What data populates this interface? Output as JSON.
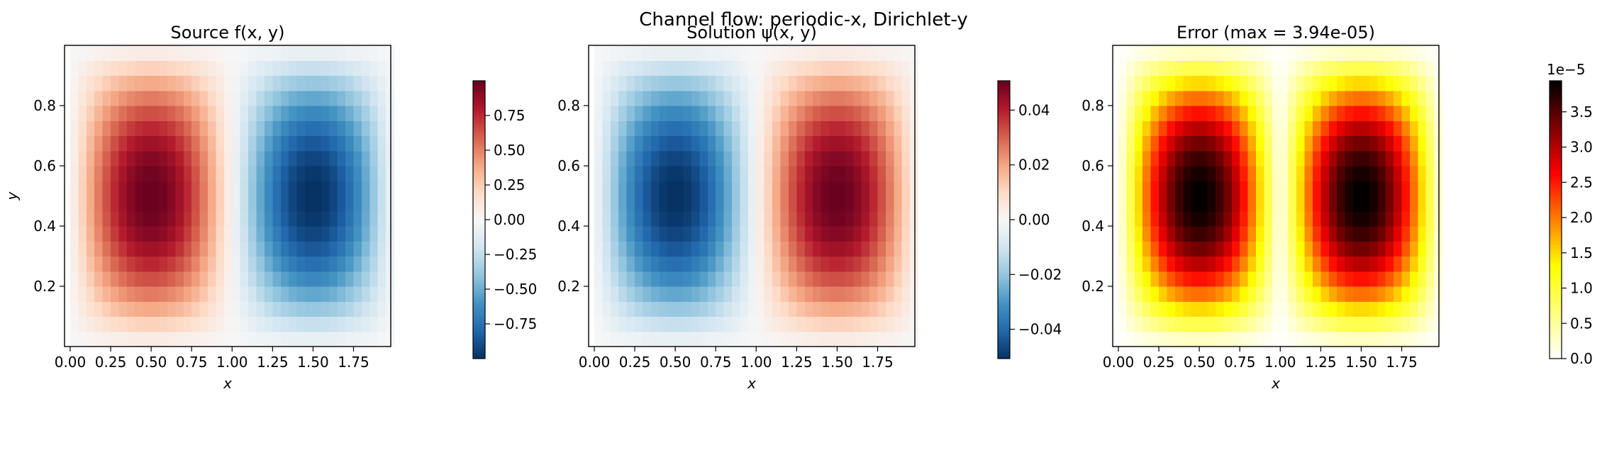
{
  "figure": {
    "suptitle": "Channel flow: periodic-x, Dirichlet-y"
  },
  "chart_data": [
    {
      "type": "heatmap",
      "title": "Source f(x, y)",
      "xlabel": "x",
      "ylabel": "y",
      "field": "sin(pi*x)*sin(pi*y)",
      "xlim": [
        0,
        2
      ],
      "ylim": [
        0,
        1
      ],
      "grid": [
        40,
        20
      ],
      "colormap": "RdBu_r",
      "vmin": -1,
      "vmax": 1,
      "xticks": [
        0.0,
        0.25,
        0.5,
        0.75,
        1.0,
        1.25,
        1.5,
        1.75
      ],
      "xtick_labels": [
        "0.00",
        "0.25",
        "0.50",
        "0.75",
        "1.00",
        "1.25",
        "1.50",
        "1.75"
      ],
      "yticks": [
        0.2,
        0.4,
        0.6,
        0.8
      ],
      "ytick_labels": [
        "0.2",
        "0.4",
        "0.6",
        "0.8"
      ],
      "colorbar_ticks": [
        -0.75,
        -0.5,
        -0.25,
        0.0,
        0.25,
        0.5,
        0.75
      ],
      "colorbar_labels": [
        "−0.75",
        "−0.50",
        "−0.25",
        "0.00",
        "0.25",
        "0.50",
        "0.75"
      ],
      "colorbar_offset": ""
    },
    {
      "type": "heatmap",
      "title": "Solution ψ(x, y)",
      "xlabel": "x",
      "ylabel": "",
      "field": "-0.0507*sin(pi*x)*sin(pi*y)",
      "xlim": [
        0,
        2
      ],
      "ylim": [
        0,
        1
      ],
      "grid": [
        40,
        20
      ],
      "colormap": "RdBu_r",
      "vmin": -0.0507,
      "vmax": 0.0507,
      "xticks": [
        0.0,
        0.25,
        0.5,
        0.75,
        1.0,
        1.25,
        1.5,
        1.75
      ],
      "xtick_labels": [
        "0.00",
        "0.25",
        "0.50",
        "0.75",
        "1.00",
        "1.25",
        "1.50",
        "1.75"
      ],
      "yticks": [
        0.2,
        0.4,
        0.6,
        0.8
      ],
      "ytick_labels": [
        "0.2",
        "0.4",
        "0.6",
        "0.8"
      ],
      "colorbar_ticks": [
        -0.04,
        -0.02,
        0.0,
        0.02,
        0.04
      ],
      "colorbar_labels": [
        "−0.04",
        "−0.02",
        "0.00",
        "0.02",
        "0.04"
      ],
      "colorbar_offset": ""
    },
    {
      "type": "heatmap",
      "title": "Error (max = 3.94e-05)",
      "xlabel": "x",
      "ylabel": "",
      "field": "3.94e-05*|sin(pi*x)*sin(pi*y)|",
      "xlim": [
        0,
        2
      ],
      "ylim": [
        0,
        1
      ],
      "grid": [
        40,
        20
      ],
      "colormap": "hot_r",
      "vmin": 0,
      "vmax": 3.94e-05,
      "xticks": [
        0.0,
        0.25,
        0.5,
        0.75,
        1.0,
        1.25,
        1.5,
        1.75
      ],
      "xtick_labels": [
        "0.00",
        "0.25",
        "0.50",
        "0.75",
        "1.00",
        "1.25",
        "1.50",
        "1.75"
      ],
      "yticks": [
        0.2,
        0.4,
        0.6,
        0.8
      ],
      "ytick_labels": [
        "0.2",
        "0.4",
        "0.6",
        "0.8"
      ],
      "colorbar_ticks": [
        0.0,
        5e-06,
        1e-05,
        1.5e-05,
        2e-05,
        2.5e-05,
        3e-05,
        3.5e-05
      ],
      "colorbar_labels": [
        "0.0",
        "0.5",
        "1.0",
        "1.5",
        "2.0",
        "2.5",
        "3.0",
        "3.5"
      ],
      "colorbar_offset": "1e−5"
    }
  ]
}
